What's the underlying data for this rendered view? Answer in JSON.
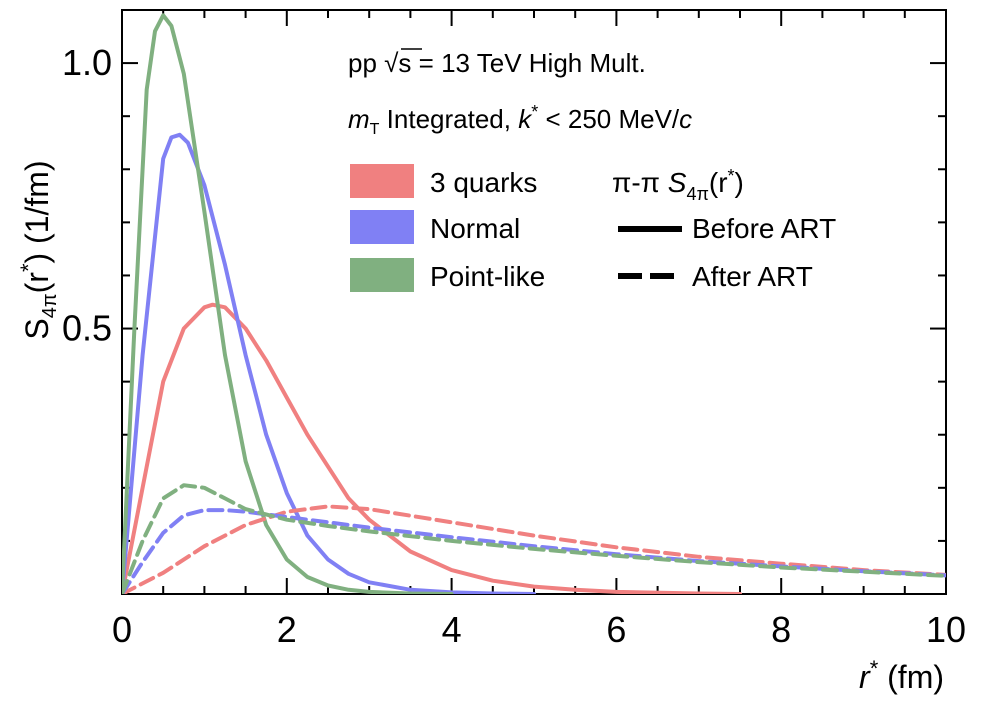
{
  "chart_data": {
    "type": "line",
    "title": "",
    "xlabel": {
      "var": "r",
      "sup": "*",
      "unit": "(fm)"
    },
    "ylabel": {
      "base": "S",
      "sub": "4π",
      "arg": "(r",
      "sup": "*",
      "close": ")",
      "unit": "(1/fm)"
    },
    "xlim": [
      0,
      10
    ],
    "ylim": [
      0,
      1.1
    ],
    "x_ticks": [
      0,
      2,
      4,
      6,
      8,
      10
    ],
    "x_tick_labels": [
      "0",
      "2",
      "4",
      "6",
      "8",
      "10"
    ],
    "y_ticks": [
      0.5,
      1.0
    ],
    "y_tick_labels": [
      "0.5",
      "1.0"
    ],
    "annotations": {
      "line1": {
        "prefix": "pp ",
        "sqrt": "√s",
        "rest": " = 13 TeV High Mult."
      },
      "line2": {
        "m": "m",
        "m_sub": "T",
        "mid": " Integrated, ",
        "k": "k",
        "k_sup": "*",
        "cond": " < 250 MeV/",
        "c": "c"
      }
    },
    "legend_models": [
      {
        "label": "3 quarks",
        "color": "#f08080"
      },
      {
        "label": "Normal",
        "color": "#8080f4"
      },
      {
        "label": "Point-like",
        "color": "#80b080"
      }
    ],
    "legend_styles_title": {
      "prefix": "π-π ",
      "S": "S",
      "sub": "4π",
      "arg": "(r",
      "sup": "*",
      "close": ")"
    },
    "legend_styles": [
      {
        "label": "Before ART",
        "dash": "solid"
      },
      {
        "label": "After ART",
        "dash": "dashed"
      }
    ],
    "series": [
      {
        "name": "3 quarks",
        "style": "Before ART",
        "color": "#f08080",
        "x": [
          0,
          0.25,
          0.5,
          0.75,
          1.0,
          1.1,
          1.25,
          1.5,
          1.75,
          2.0,
          2.25,
          2.5,
          2.75,
          3.0,
          3.5,
          4.0,
          4.5,
          5.0,
          5.5,
          6.0,
          7.0,
          7.5
        ],
        "y": [
          0,
          0.2,
          0.4,
          0.5,
          0.54,
          0.545,
          0.54,
          0.5,
          0.44,
          0.37,
          0.3,
          0.24,
          0.18,
          0.14,
          0.08,
          0.045,
          0.025,
          0.014,
          0.008,
          0.004,
          0.001,
          0.0
        ]
      },
      {
        "name": "Normal",
        "style": "Before ART",
        "color": "#8080f4",
        "x": [
          0,
          0.25,
          0.5,
          0.6,
          0.7,
          0.8,
          1.0,
          1.25,
          1.5,
          1.75,
          2.0,
          2.25,
          2.5,
          2.75,
          3.0,
          3.5,
          4.0,
          4.5,
          5.0
        ],
        "y": [
          0,
          0.45,
          0.82,
          0.86,
          0.865,
          0.85,
          0.77,
          0.62,
          0.45,
          0.3,
          0.19,
          0.11,
          0.065,
          0.038,
          0.022,
          0.008,
          0.003,
          0.001,
          0.0
        ]
      },
      {
        "name": "Point-like",
        "style": "Before ART",
        "color": "#80b080",
        "x": [
          0,
          0.15,
          0.3,
          0.4,
          0.5,
          0.6,
          0.75,
          1.0,
          1.25,
          1.5,
          1.75,
          2.0,
          2.25,
          2.5,
          2.75,
          3.0,
          3.5,
          4.0
        ],
        "y": [
          0,
          0.5,
          0.95,
          1.06,
          1.09,
          1.07,
          0.98,
          0.72,
          0.45,
          0.25,
          0.13,
          0.065,
          0.032,
          0.016,
          0.008,
          0.004,
          0.001,
          0.0
        ]
      },
      {
        "name": "3 quarks",
        "style": "After ART",
        "color": "#f08080",
        "x": [
          0,
          0.5,
          1.0,
          1.5,
          2.0,
          2.5,
          3.0,
          4.0,
          5.0,
          6.0,
          7.0,
          8.0,
          9.0,
          10.0
        ],
        "y": [
          0,
          0.04,
          0.09,
          0.13,
          0.155,
          0.165,
          0.16,
          0.135,
          0.11,
          0.088,
          0.07,
          0.057,
          0.045,
          0.036
        ]
      },
      {
        "name": "Normal",
        "style": "After ART",
        "color": "#8080f4",
        "x": [
          0,
          0.25,
          0.5,
          0.75,
          1.0,
          1.25,
          1.5,
          2.0,
          2.5,
          3.0,
          4.0,
          5.0,
          6.0,
          7.0,
          8.0,
          9.0,
          10.0
        ],
        "y": [
          0,
          0.06,
          0.115,
          0.148,
          0.158,
          0.158,
          0.155,
          0.145,
          0.135,
          0.125,
          0.107,
          0.09,
          0.075,
          0.062,
          0.052,
          0.043,
          0.035
        ]
      },
      {
        "name": "Point-like",
        "style": "After ART",
        "color": "#80b080",
        "x": [
          0,
          0.25,
          0.5,
          0.75,
          1.0,
          1.25,
          1.5,
          2.0,
          2.5,
          3.0,
          4.0,
          5.0,
          6.0,
          7.0,
          8.0,
          9.0,
          10.0
        ],
        "y": [
          0,
          0.1,
          0.18,
          0.205,
          0.2,
          0.18,
          0.16,
          0.14,
          0.128,
          0.118,
          0.1,
          0.085,
          0.072,
          0.06,
          0.05,
          0.042,
          0.034
        ]
      }
    ]
  }
}
